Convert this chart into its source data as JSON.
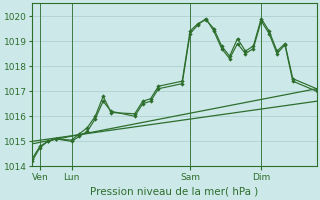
{
  "background_color": "#cce8e8",
  "plot_bg_color": "#cce8e8",
  "grid_color": "#aacccc",
  "line_color": "#2d6e2d",
  "ylim": [
    1014,
    1020.5
  ],
  "yticks": [
    1014,
    1015,
    1016,
    1017,
    1018,
    1019,
    1020
  ],
  "xlim": [
    0,
    36
  ],
  "xtick_positions": [
    1,
    5,
    20,
    29
  ],
  "xtick_labels": [
    "Ven",
    "Lun",
    "Sam",
    "Dim"
  ],
  "vline_positions": [
    1,
    5,
    20,
    29
  ],
  "xlabel": "Pression niveau de la mer( hPa )",
  "series_jagged1": {
    "x": [
      0,
      1,
      2,
      3,
      5,
      6,
      7,
      8,
      9,
      10,
      13,
      14,
      15,
      16,
      19,
      20,
      21,
      22,
      23,
      24,
      25,
      26,
      27,
      28,
      29,
      30,
      31,
      32,
      33,
      36
    ],
    "y": [
      1014.3,
      1014.8,
      1015.0,
      1015.1,
      1015.0,
      1015.2,
      1015.4,
      1015.9,
      1016.6,
      1016.2,
      1016.0,
      1016.5,
      1016.6,
      1017.1,
      1017.3,
      1019.3,
      1019.65,
      1019.9,
      1019.4,
      1018.7,
      1018.3,
      1018.9,
      1018.5,
      1018.7,
      1019.8,
      1019.3,
      1018.5,
      1018.85,
      1017.4,
      1017.0
    ]
  },
  "series_jagged2": {
    "x": [
      0,
      1,
      2,
      3,
      5,
      6,
      7,
      8,
      9,
      10,
      13,
      14,
      15,
      16,
      19,
      20,
      21,
      22,
      23,
      24,
      25,
      26,
      27,
      28,
      29,
      30,
      31,
      32,
      33,
      36
    ],
    "y": [
      1014.2,
      1014.75,
      1015.0,
      1015.1,
      1015.05,
      1015.3,
      1015.55,
      1016.0,
      1016.8,
      1016.15,
      1016.1,
      1016.6,
      1016.7,
      1017.2,
      1017.4,
      1019.4,
      1019.7,
      1019.85,
      1019.5,
      1018.8,
      1018.4,
      1019.1,
      1018.6,
      1018.8,
      1019.9,
      1019.4,
      1018.6,
      1018.9,
      1017.5,
      1017.1
    ]
  },
  "series_linear1": {
    "x": [
      0,
      36
    ],
    "y": [
      1015.0,
      1016.6
    ]
  },
  "series_linear2": {
    "x": [
      0,
      36
    ],
    "y": [
      1014.9,
      1017.1
    ]
  }
}
